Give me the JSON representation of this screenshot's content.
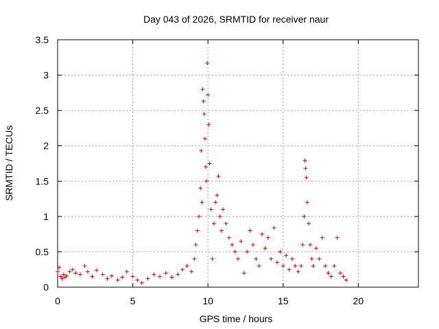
{
  "chart_data": {
    "type": "scatter",
    "title": "Day 043 of 2026, SRMTID for receiver naur",
    "xlabel": "GPS time / hours",
    "ylabel": "SRMTID / TECUs",
    "xlim": [
      0,
      24
    ],
    "ylim": [
      0,
      3.5
    ],
    "x_ticks": [
      "0",
      "5",
      "10",
      "15",
      "20"
    ],
    "y_ticks": [
      "0",
      "0.5",
      "1",
      "1.5",
      "2",
      "2.5",
      "3",
      "3.5"
    ],
    "grid": true,
    "marker": "plus",
    "color": "#dd0000",
    "series": [
      {
        "name": "SRMTID",
        "points": [
          [
            0.0,
            0.22
          ],
          [
            0.1,
            0.28
          ],
          [
            0.2,
            0.15
          ],
          [
            0.3,
            0.12
          ],
          [
            0.4,
            0.18
          ],
          [
            0.5,
            0.14
          ],
          [
            0.6,
            0.16
          ],
          [
            0.8,
            0.22
          ],
          [
            1.0,
            0.25
          ],
          [
            1.2,
            0.2
          ],
          [
            1.5,
            0.18
          ],
          [
            1.8,
            0.3
          ],
          [
            2.0,
            0.22
          ],
          [
            2.3,
            0.15
          ],
          [
            2.6,
            0.24
          ],
          [
            3.0,
            0.18
          ],
          [
            3.3,
            0.12
          ],
          [
            3.6,
            0.16
          ],
          [
            4.0,
            0.1
          ],
          [
            4.3,
            0.14
          ],
          [
            4.6,
            0.22
          ],
          [
            5.0,
            0.15
          ],
          [
            5.3,
            0.1
          ],
          [
            5.6,
            0.06
          ],
          [
            6.0,
            0.12
          ],
          [
            6.4,
            0.18
          ],
          [
            6.8,
            0.15
          ],
          [
            7.2,
            0.2
          ],
          [
            7.6,
            0.14
          ],
          [
            8.0,
            0.18
          ],
          [
            8.3,
            0.25
          ],
          [
            8.6,
            0.3
          ],
          [
            8.9,
            0.22
          ],
          [
            9.1,
            0.4
          ],
          [
            9.2,
            0.6
          ],
          [
            9.3,
            0.8
          ],
          [
            9.4,
            1.0
          ],
          [
            9.5,
            1.4
          ],
          [
            9.55,
            1.93
          ],
          [
            9.6,
            1.2
          ],
          [
            9.65,
            2.8
          ],
          [
            9.7,
            2.63
          ],
          [
            9.75,
            2.45
          ],
          [
            9.8,
            2.1
          ],
          [
            9.85,
            1.7
          ],
          [
            9.9,
            1.5
          ],
          [
            9.95,
            3.17
          ],
          [
            10.0,
            2.72
          ],
          [
            10.05,
            2.3
          ],
          [
            10.1,
            1.75
          ],
          [
            10.2,
            1.1
          ],
          [
            10.3,
            0.4
          ],
          [
            10.4,
            0.9
          ],
          [
            10.5,
            1.2
          ],
          [
            10.6,
            1.3
          ],
          [
            10.7,
            1.57
          ],
          [
            10.8,
            1.0
          ],
          [
            10.9,
            0.8
          ],
          [
            11.0,
            1.1
          ],
          [
            11.2,
            0.9
          ],
          [
            11.4,
            0.7
          ],
          [
            11.6,
            0.6
          ],
          [
            11.8,
            0.5
          ],
          [
            12.0,
            0.4
          ],
          [
            12.2,
            0.65
          ],
          [
            12.4,
            0.2
          ],
          [
            12.6,
            0.5
          ],
          [
            12.8,
            0.8
          ],
          [
            13.0,
            0.6
          ],
          [
            13.2,
            0.4
          ],
          [
            13.4,
            0.3
          ],
          [
            13.6,
            0.75
          ],
          [
            13.8,
            0.55
          ],
          [
            14.0,
            0.7
          ],
          [
            14.2,
            0.4
          ],
          [
            14.4,
            0.84
          ],
          [
            14.6,
            0.35
          ],
          [
            14.8,
            0.5
          ],
          [
            15.0,
            0.3
          ],
          [
            15.2,
            0.45
          ],
          [
            15.4,
            0.25
          ],
          [
            15.6,
            0.4
          ],
          [
            15.8,
            0.3
          ],
          [
            16.0,
            0.22
          ],
          [
            16.2,
            0.3
          ],
          [
            16.3,
            0.6
          ],
          [
            16.4,
            1.0
          ],
          [
            16.45,
            1.79
          ],
          [
            16.5,
            1.68
          ],
          [
            16.55,
            1.55
          ],
          [
            16.6,
            1.2
          ],
          [
            16.7,
            0.9
          ],
          [
            16.8,
            0.6
          ],
          [
            16.9,
            0.4
          ],
          [
            17.0,
            0.3
          ],
          [
            17.2,
            0.55
          ],
          [
            17.4,
            0.4
          ],
          [
            17.6,
            0.7
          ],
          [
            17.8,
            0.3
          ],
          [
            18.0,
            0.2
          ],
          [
            18.2,
            0.15
          ],
          [
            18.4,
            0.3
          ],
          [
            18.6,
            0.7
          ],
          [
            18.8,
            0.2
          ],
          [
            19.0,
            0.15
          ],
          [
            19.2,
            0.1
          ]
        ]
      }
    ]
  }
}
